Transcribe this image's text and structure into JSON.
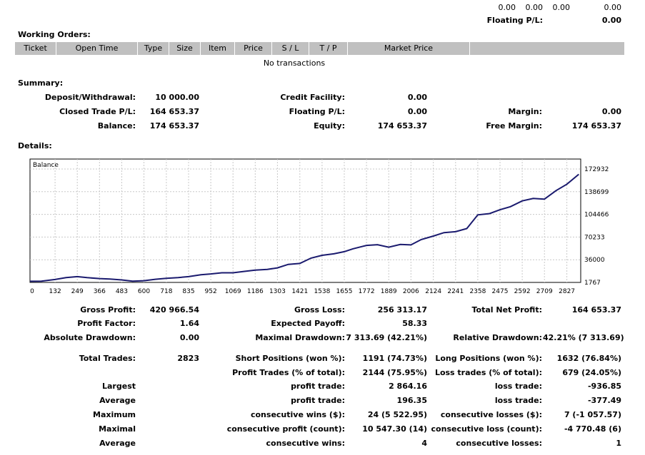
{
  "top": {
    "values": [
      "0.00",
      "0.00",
      "0.00",
      "0.00"
    ],
    "floating_label": "Floating P/L:",
    "floating_value": "0.00"
  },
  "working_orders": {
    "title": "Working Orders:",
    "columns": [
      "Ticket",
      "Open Time",
      "Type",
      "Size",
      "Item",
      "Price",
      "S / L",
      "T / P",
      "Market Price",
      ""
    ],
    "empty_text": "No transactions"
  },
  "summary": {
    "title": "Summary:",
    "deposit_label": "Deposit/Withdrawal:",
    "deposit_value": "10 000.00",
    "credit_label": "Credit Facility:",
    "credit_value": "0.00",
    "closed_label": "Closed Trade P/L:",
    "closed_value": "164 653.37",
    "floating_label": "Floating P/L:",
    "floating_value": "0.00",
    "margin_label": "Margin:",
    "margin_value": "0.00",
    "balance_label": "Balance:",
    "balance_value": "174 653.37",
    "equity_label": "Equity:",
    "equity_value": "174 653.37",
    "free_margin_label": "Free Margin:",
    "free_margin_value": "174 653.37"
  },
  "details": {
    "title": "Details:"
  },
  "chart_data": {
    "type": "line",
    "title": "Balance",
    "x_ticks": [
      "0",
      "132",
      "249",
      "366",
      "483",
      "600",
      "718",
      "835",
      "952",
      "1069",
      "1186",
      "1303",
      "1421",
      "1538",
      "1655",
      "1772",
      "1889",
      "2006",
      "2124",
      "2241",
      "2358",
      "2475",
      "2592",
      "2709",
      "2827"
    ],
    "y_ticks": [
      "172932",
      "138699",
      "104466",
      "70233",
      "36000",
      "1767"
    ],
    "xlim": [
      0,
      2900
    ],
    "ylim": [
      1767,
      172932
    ],
    "grid": true,
    "line_color": "#1a1a6e",
    "series": [
      {
        "x": [
          0,
          60,
          132,
          190,
          249,
          300,
          366,
          420,
          483,
          540,
          600,
          660,
          718,
          780,
          835,
          900,
          952,
          1010,
          1069,
          1130,
          1186,
          1250,
          1303,
          1360,
          1421,
          1480,
          1538,
          1600,
          1655,
          1700,
          1772,
          1830,
          1889,
          1950,
          2006,
          2060,
          2124,
          2180,
          2241,
          2300,
          2358,
          2420,
          2475,
          2530,
          2592,
          2650,
          2709,
          2770,
          2827,
          2890
        ],
        "y": [
          3500,
          3600,
          6200,
          9000,
          10500,
          9000,
          7600,
          6800,
          5500,
          3700,
          4300,
          6500,
          8000,
          9100,
          10500,
          13400,
          14600,
          16300,
          16300,
          18400,
          20300,
          21500,
          23700,
          29000,
          30400,
          38500,
          42700,
          44900,
          48200,
          52500,
          57600,
          58700,
          55000,
          59000,
          58400,
          66500,
          71700,
          76900,
          78300,
          83000,
          103700,
          105600,
          111500,
          116100,
          124800,
          128500,
          127500,
          140300,
          150000,
          165000
        ]
      }
    ]
  },
  "stats": {
    "gross_profit_label": "Gross Profit:",
    "gross_profit_value": "420 966.54",
    "gross_loss_label": "Gross Loss:",
    "gross_loss_value": "256 313.17",
    "total_net_label": "Total Net Profit:",
    "total_net_value": "164 653.37",
    "profit_factor_label": "Profit Factor:",
    "profit_factor_value": "1.64",
    "expected_payoff_label": "Expected Payoff:",
    "expected_payoff_value": "58.33",
    "abs_dd_label": "Absolute Drawdown:",
    "abs_dd_value": "0.00",
    "max_dd_label": "Maximal Drawdown:",
    "max_dd_value": "7 313.69 (42.21%)",
    "rel_dd_label": "Relative Drawdown:",
    "rel_dd_value": "42.21% (7 313.69)",
    "total_trades_label": "Total Trades:",
    "total_trades_value": "2823",
    "short_label": "Short Positions (won %):",
    "short_value": "1191 (74.73%)",
    "long_label": "Long Positions (won %):",
    "long_value": "1632 (76.84%)",
    "profit_trades_label": "Profit Trades (% of total):",
    "profit_trades_value": "2144 (75.95%)",
    "loss_trades_label": "Loss trades (% of total):",
    "loss_trades_value": "679 (24.05%)",
    "rows": [
      {
        "lead": "Largest",
        "mid_label": "profit trade:",
        "mid_value": "2 864.16",
        "right_label": "loss trade:",
        "right_value": "-936.85"
      },
      {
        "lead": "Average",
        "mid_label": "profit trade:",
        "mid_value": "196.35",
        "right_label": "loss trade:",
        "right_value": "-377.49"
      },
      {
        "lead": "Maximum",
        "mid_label": "consecutive wins ($):",
        "mid_value": "24 (5 522.95)",
        "right_label": "consecutive losses ($):",
        "right_value": "7 (-1 057.57)"
      },
      {
        "lead": "Maximal",
        "mid_label": "consecutive profit (count):",
        "mid_value": "10 547.30 (14)",
        "right_label": "consecutive loss (count):",
        "right_value": "-4 770.48 (6)"
      },
      {
        "lead": "Average",
        "mid_label": "consecutive wins:",
        "mid_value": "4",
        "right_label": "consecutive losses:",
        "right_value": "1"
      }
    ]
  }
}
